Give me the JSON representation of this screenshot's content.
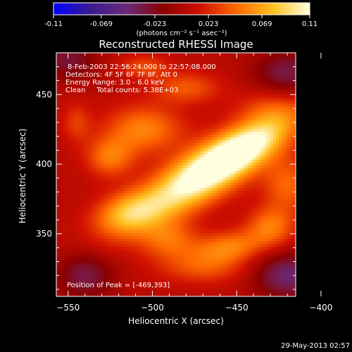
{
  "colorbar": {
    "ticks": [
      "-0.11",
      "-0.069",
      "-0.023",
      "0.023",
      "0.069",
      "0.11"
    ],
    "tick_values": [
      -0.11,
      -0.069,
      -0.023,
      0.023,
      0.069,
      0.11
    ],
    "range": [
      -0.11,
      0.11
    ],
    "units_label": "(photons cm⁻² s⁻¹ asec⁻²)",
    "colormap": [
      "#0000ff",
      "#3a1a8f",
      "#6a2a7a",
      "#8a0000",
      "#d01000",
      "#ff6a00",
      "#ffc020",
      "#ffffe0"
    ]
  },
  "chart_data": {
    "type": "heatmap",
    "title": "Reconstructed RHESSI Image",
    "xlabel": "Heliocentric X (arcsec)",
    "ylabel": "Heliocentric Y (arcsec)",
    "xlim": [
      -557,
      -415
    ],
    "ylim": [
      305,
      480
    ],
    "x_ticks": [
      -550,
      -500,
      -450,
      -400
    ],
    "y_ticks": [
      350,
      400,
      450
    ],
    "x_tick_labels": [
      "−550",
      "−500",
      "−450",
      "−400"
    ],
    "y_tick_labels": [
      "350",
      "400",
      "450"
    ],
    "annotations": [
      "8-Feb-2003 22:56:24.000 to 22:57:08.000",
      "Detectors: 4F 5F 6F 7F 8F, Att 0",
      "Energy Range: 3.0 - 6.0 keV",
      "Clean     Total counts: 5.38E+03"
    ],
    "peak_label": "Position of Peak = [-469,393]",
    "peak": [
      -469,
      393
    ],
    "sources": [
      {
        "x": -469,
        "y": 393,
        "sx": 38,
        "sy": 12,
        "angle": 38,
        "amp": 0.11
      },
      {
        "x": -448,
        "y": 410,
        "sx": 22,
        "sy": 9,
        "angle": 35,
        "amp": 0.06
      },
      {
        "x": -505,
        "y": 425,
        "sx": 16,
        "sy": 12,
        "angle": 0,
        "amp": 0.05
      },
      {
        "x": -525,
        "y": 405,
        "sx": 10,
        "sy": 10,
        "angle": 0,
        "amp": 0.045
      },
      {
        "x": -515,
        "y": 365,
        "sx": 14,
        "sy": 10,
        "angle": 20,
        "amp": 0.05
      },
      {
        "x": -490,
        "y": 345,
        "sx": 12,
        "sy": 10,
        "angle": 0,
        "amp": 0.04
      },
      {
        "x": -455,
        "y": 340,
        "sx": 15,
        "sy": 8,
        "angle": 10,
        "amp": 0.05
      },
      {
        "x": -430,
        "y": 355,
        "sx": 10,
        "sy": 10,
        "angle": 0,
        "amp": 0.045
      },
      {
        "x": -420,
        "y": 385,
        "sx": 10,
        "sy": 14,
        "angle": 0,
        "amp": 0.04
      },
      {
        "x": -480,
        "y": 455,
        "sx": 14,
        "sy": 8,
        "angle": 0,
        "amp": 0.035
      },
      {
        "x": -505,
        "y": 470,
        "sx": 10,
        "sy": 6,
        "angle": 0,
        "amp": 0.03
      },
      {
        "x": -545,
        "y": 430,
        "sx": 6,
        "sy": 10,
        "angle": 0,
        "amp": 0.025
      },
      {
        "x": -470,
        "y": 325,
        "sx": 18,
        "sy": 8,
        "angle": 0,
        "amp": 0.03
      },
      {
        "x": -430,
        "y": 440,
        "sx": 14,
        "sy": 10,
        "angle": 0,
        "amp": 0.025
      },
      {
        "x": -540,
        "y": 320,
        "sx": 12,
        "sy": 12,
        "angle": 0,
        "amp": -0.04
      },
      {
        "x": -420,
        "y": 320,
        "sx": 14,
        "sy": 12,
        "angle": 0,
        "amp": -0.05
      },
      {
        "x": -420,
        "y": 465,
        "sx": 14,
        "sy": 12,
        "angle": 0,
        "amp": -0.04
      },
      {
        "x": -550,
        "y": 475,
        "sx": 12,
        "sy": 10,
        "angle": 0,
        "amp": -0.035
      }
    ],
    "background": 0.005
  },
  "footer": {
    "timestamp": "29-May-2013 02:57"
  }
}
